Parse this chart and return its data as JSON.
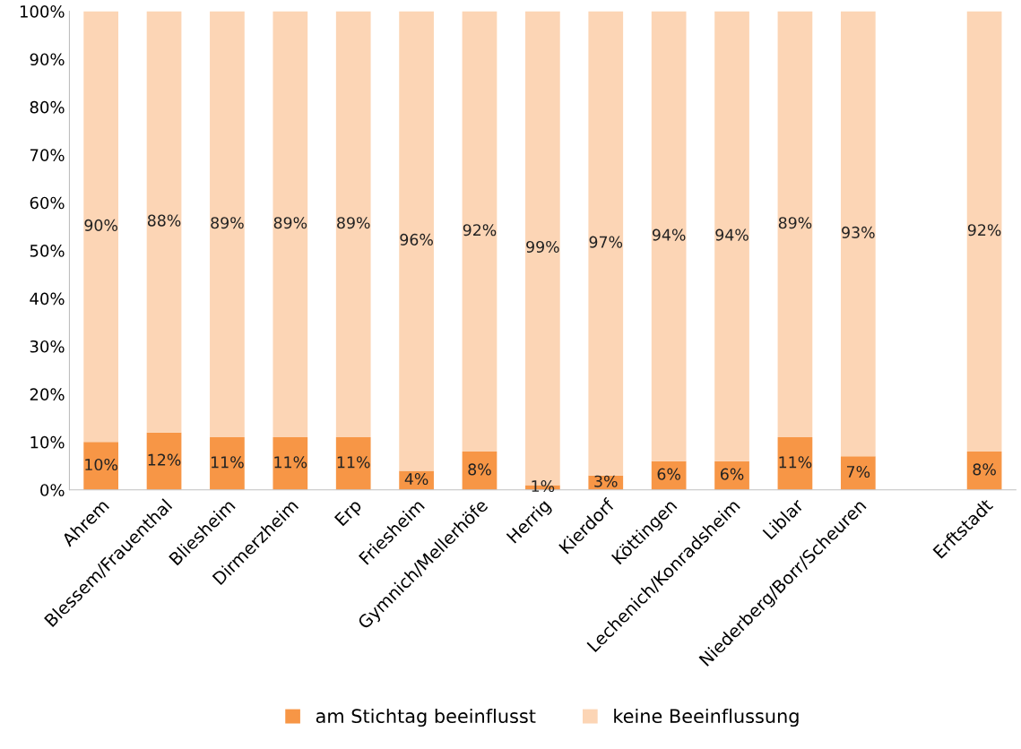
{
  "chart_data": {
    "type": "bar",
    "stacked": true,
    "categories": [
      "Ahrem",
      "Blessem/Frauenthal",
      "Bliesheim",
      "Dirmerzheim",
      "Erp",
      "Friesheim",
      "Gymnich/Mellerhöfe",
      "Herrig",
      "Kierdorf",
      "Köttingen",
      "Lechenich/Konradsheim",
      "Liblar",
      "Niederberg/Borr/Scheuren",
      null,
      "Erftstadt"
    ],
    "series": [
      {
        "name": "am Stichtag beeinflusst",
        "color": "#f79646",
        "values": [
          10,
          12,
          11,
          11,
          11,
          4,
          8,
          1,
          3,
          6,
          6,
          11,
          7,
          null,
          8
        ],
        "value_labels": [
          "10%",
          "12%",
          "11%",
          "11%",
          "11%",
          "4%",
          "8%",
          "1%",
          "3%",
          "6%",
          "6%",
          "11%",
          "7%",
          null,
          "8%"
        ]
      },
      {
        "name": "keine Beeinflussung",
        "color": "#fcd5b5",
        "values": [
          90,
          88,
          89,
          89,
          89,
          96,
          92,
          99,
          97,
          94,
          94,
          89,
          93,
          null,
          92
        ],
        "value_labels": [
          "90%",
          "88%",
          "89%",
          "89%",
          "89%",
          "96%",
          "92%",
          "99%",
          "97%",
          "94%",
          "94%",
          "89%",
          "93%",
          null,
          "92%"
        ]
      }
    ],
    "ylim": [
      0,
      100
    ],
    "yticks": [
      {
        "value": 0,
        "label": "0%"
      },
      {
        "value": 10,
        "label": "10%"
      },
      {
        "value": 20,
        "label": "20%"
      },
      {
        "value": 30,
        "label": "30%"
      },
      {
        "value": 40,
        "label": "40%"
      },
      {
        "value": 50,
        "label": "50%"
      },
      {
        "value": 60,
        "label": "60%"
      },
      {
        "value": 70,
        "label": "70%"
      },
      {
        "value": 80,
        "label": "80%"
      },
      {
        "value": 90,
        "label": "90%"
      },
      {
        "value": 100,
        "label": "100%"
      }
    ],
    "grid": false,
    "legend": "bottom"
  }
}
